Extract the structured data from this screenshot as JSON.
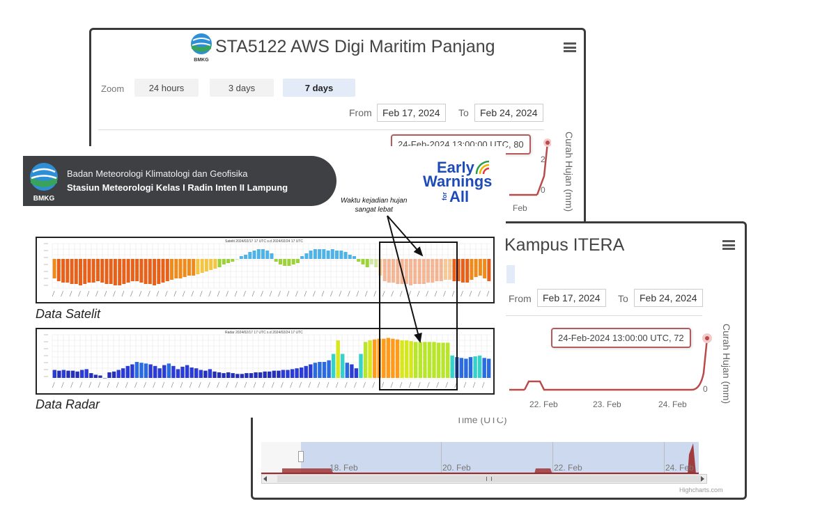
{
  "colors": {
    "rain_line": "#b84a4a",
    "rain_fill": "#9c2a2a",
    "navigator_mask": "#cdd9ee",
    "zoom_active_bg": "#e3ebf8",
    "bmkg_banner": "#3f4043",
    "early_warnings": "#1e4bb8"
  },
  "panel_top": {
    "logo": "bmkg-logo",
    "logo_text": "BMKG",
    "title": "STA5122 AWS Digi Maritim Panjang",
    "menu_icon": "hamburger-icon",
    "zoom_label": "Zoom",
    "zoom_options": [
      "24 hours",
      "3 days",
      "7 days"
    ],
    "zoom_selected": "7 days",
    "from_label": "From",
    "from_value": "Feb 17, 2024",
    "to_label": "To",
    "to_value": "Feb 24, 2024",
    "tooltip": "24-Feb-2024 13:00:00 UTC, 80",
    "y_axis_title": "Curah Hujan (mm)",
    "y_ticks": [
      "2",
      "0"
    ],
    "x_tick": "Feb"
  },
  "panel_bottom": {
    "title": "Kampus ITERA",
    "menu_icon": "hamburger-icon",
    "from_label": "From",
    "from_value": "Feb 17, 2024",
    "to_label": "To",
    "to_value": "Feb 24, 2024",
    "tooltip": "24-Feb-2024 13:00:00 UTC, 72",
    "y_axis_title": "Curah Hujan (mm)",
    "y_ticks": [
      "0"
    ],
    "x_ticks": [
      "22. Feb",
      "23. Feb",
      "24. Feb"
    ],
    "x_axis_title": "Time (UTC)",
    "navigator_ticks": [
      "18. Feb",
      "20. Feb",
      "22. Feb",
      "24. Feb"
    ],
    "credit": "Highcharts.com",
    "scroll_left_icon": "arrow-left-icon",
    "scroll_right_icon": "arrow-right-icon",
    "scroll_grip_icon": "grip-icon"
  },
  "overlay": {
    "bmkg_logo_text": "BMKG",
    "agency": "Badan Meteorologi Klimatologi dan Geofisika",
    "station": "Stasiun Meteorologi Kelas I Radin Inten II Lampung",
    "early_warnings": {
      "line1": "Early",
      "line2": "Warnings",
      "for": "for",
      "all": "All"
    },
    "annotation": {
      "line1": "Waktu kejadian hujan",
      "line2": "sangat lebat"
    },
    "satellite_label": "Data Satelit",
    "radar_label": "Data Radar",
    "satellite_title": "Satelit 2024/02/17 17 UTC s.d 2024/02/24 17 UTC",
    "radar_title": "Radar 2024/02/17 17 UTC s.d 2024/02/24 17 UTC"
  },
  "chart_data": [
    {
      "type": "line",
      "title": "STA5122 AWS Digi Maritim Panjang",
      "ylabel": "Curah Hujan (mm)",
      "series": [
        {
          "name": "",
          "points": [
            {
              "x": "24-Feb-2024 13:00:00 UTC",
              "y": 80
            }
          ]
        }
      ]
    },
    {
      "type": "line",
      "title": "Kampus ITERA",
      "xlabel": "Time (UTC)",
      "ylabel": "Curah Hujan (mm)",
      "series": [
        {
          "name": "",
          "points": [
            {
              "x": "24-Feb-2024 13:00:00 UTC",
              "y": 72
            }
          ]
        }
      ]
    },
    {
      "type": "bar",
      "title": "Satelit 2024/02/17 17 UTC s.d 2024/02/24 17 UTC",
      "values": [
        -14,
        -16,
        -17,
        -17,
        -18,
        -18,
        -19,
        -18,
        -17,
        -17,
        -16,
        -17,
        -18,
        -18,
        -19,
        -19,
        -18,
        -17,
        -16,
        -16,
        -17,
        -18,
        -18,
        -19,
        -18,
        -17,
        -16,
        -15,
        -14,
        -14,
        -13,
        -12,
        -12,
        -11,
        -10,
        -9,
        -8,
        -7,
        -6,
        -4,
        -3,
        -2,
        0,
        2,
        3,
        5,
        6,
        7,
        7,
        6,
        4,
        -2,
        -4,
        -5,
        -5,
        -4,
        -3,
        2,
        4,
        6,
        7,
        7,
        7,
        6,
        7,
        6,
        6,
        5,
        3,
        2,
        -2,
        -4,
        -6,
        -4,
        -6,
        -12,
        -16,
        -17,
        -17,
        -18,
        -18,
        -18,
        -19,
        -18,
        -18,
        -18,
        -17,
        -17,
        -16,
        -16,
        -15,
        -15,
        -16,
        -16,
        -17,
        -17,
        -15,
        -13,
        -12,
        -14,
        -16
      ],
      "ylim": [
        -20,
        8
      ]
    },
    {
      "type": "bar",
      "title": "Radar 2024/02/17 17 UTC s.d 2024/02/24 17 UTC",
      "values": [
        10,
        9,
        10,
        9,
        9,
        8,
        10,
        11,
        6,
        4,
        3,
        0,
        7,
        8,
        10,
        12,
        15,
        17,
        20,
        19,
        18,
        17,
        15,
        12,
        16,
        18,
        15,
        11,
        14,
        16,
        13,
        12,
        10,
        9,
        11,
        8,
        7,
        6,
        7,
        6,
        5,
        5,
        6,
        6,
        7,
        7,
        8,
        8,
        9,
        9,
        10,
        10,
        11,
        12,
        13,
        15,
        17,
        19,
        20,
        20,
        22,
        30,
        47,
        30,
        19,
        17,
        12,
        30,
        45,
        47,
        48,
        49,
        49,
        50,
        49,
        48,
        47,
        47,
        46,
        45,
        45,
        45,
        45,
        45,
        44,
        44,
        44,
        28,
        26,
        25,
        24,
        26,
        27,
        28,
        25,
        24
      ],
      "ylim": [
        0,
        55
      ]
    }
  ]
}
